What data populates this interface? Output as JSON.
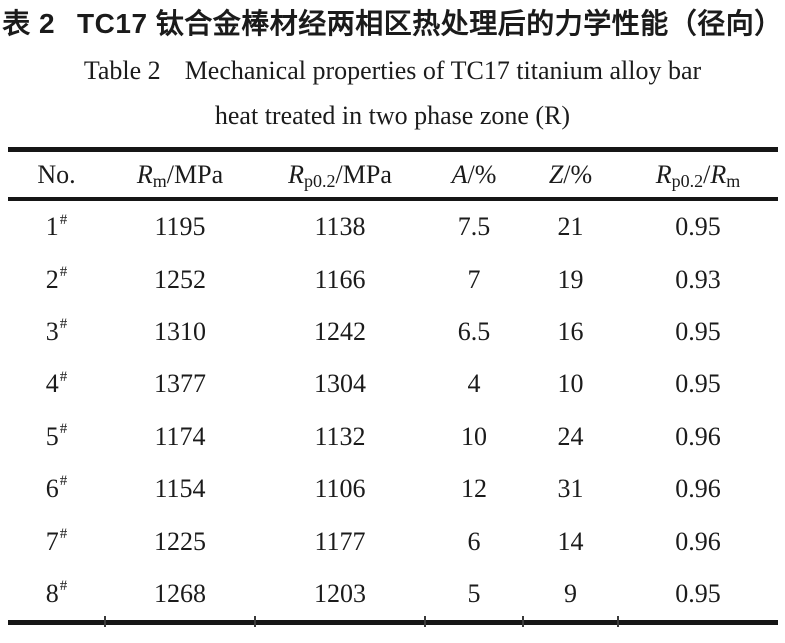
{
  "caption_zh": {
    "label": "表 2",
    "text": "TC17 钛合金棒材经两相区热处理后的力学性能（径向）"
  },
  "caption_en": {
    "label": "Table 2",
    "line1": "Mechanical properties of TC17 titanium alloy bar",
    "line2": "heat treated in two phase zone (R)"
  },
  "table": {
    "columns": [
      {
        "key": "no",
        "segments": [
          {
            "text": "No.",
            "style": "plain"
          }
        ]
      },
      {
        "key": "rm",
        "segments": [
          {
            "text": "R",
            "style": "italic"
          },
          {
            "text": "m",
            "style": "sub"
          },
          {
            "text": "/MPa",
            "style": "plain"
          }
        ]
      },
      {
        "key": "rp02",
        "segments": [
          {
            "text": "R",
            "style": "italic"
          },
          {
            "text": "p0.2",
            "style": "sub"
          },
          {
            "text": "/MPa",
            "style": "plain"
          }
        ]
      },
      {
        "key": "a",
        "segments": [
          {
            "text": "A",
            "style": "italic"
          },
          {
            "text": "/%",
            "style": "plain"
          }
        ]
      },
      {
        "key": "z",
        "segments": [
          {
            "text": "Z",
            "style": "italic"
          },
          {
            "text": "/%",
            "style": "plain"
          }
        ]
      },
      {
        "key": "ratio",
        "segments": [
          {
            "text": "R",
            "style": "italic"
          },
          {
            "text": "p0.2",
            "style": "sub"
          },
          {
            "text": "/",
            "style": "plain"
          },
          {
            "text": "R",
            "style": "italic"
          },
          {
            "text": "m",
            "style": "sub"
          }
        ]
      }
    ],
    "rows": [
      {
        "no": "1",
        "marker": "#",
        "rm": "1195",
        "rp02": "1138",
        "a": "7.5",
        "z": "21",
        "ratio": "0.95"
      },
      {
        "no": "2",
        "marker": "#",
        "rm": "1252",
        "rp02": "1166",
        "a": "7",
        "z": "19",
        "ratio": "0.93"
      },
      {
        "no": "3",
        "marker": "#",
        "rm": "1310",
        "rp02": "1242",
        "a": "6.5",
        "z": "16",
        "ratio": "0.95"
      },
      {
        "no": "4",
        "marker": "#",
        "rm": "1377",
        "rp02": "1304",
        "a": "4",
        "z": "10",
        "ratio": "0.95"
      },
      {
        "no": "5",
        "marker": "#",
        "rm": "1174",
        "rp02": "1132",
        "a": "10",
        "z": "24",
        "ratio": "0.96"
      },
      {
        "no": "6",
        "marker": "#",
        "rm": "1154",
        "rp02": "1106",
        "a": "12",
        "z": "31",
        "ratio": "0.96"
      },
      {
        "no": "7",
        "marker": "#",
        "rm": "1225",
        "rp02": "1177",
        "a": "6",
        "z": "14",
        "ratio": "0.96"
      },
      {
        "no": "8",
        "marker": "#",
        "rm": "1268",
        "rp02": "1203",
        "a": "5",
        "z": "9",
        "ratio": "0.95"
      }
    ]
  },
  "colors": {
    "background": "#ffffff",
    "text": "#1b1b1b",
    "rule": "#161616"
  }
}
